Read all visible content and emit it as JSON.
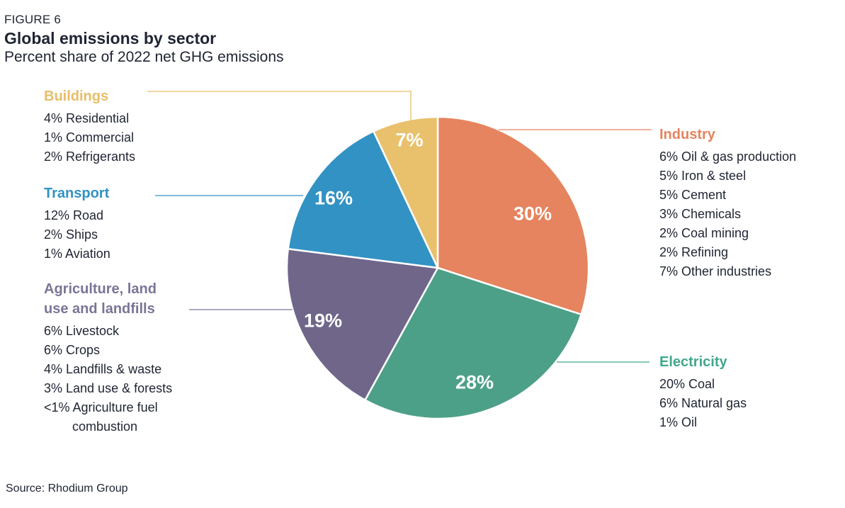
{
  "figure_label": "FIGURE 6",
  "source": "Source: Rhodium Group",
  "chart_data": {
    "type": "pie",
    "title": "Global emissions by sector",
    "subtitle": "Percent share of 2022 net GHG emissions",
    "start_angle_deg": 0,
    "direction": "clockwise",
    "units": "percent of 2022 net GHG emissions",
    "legend_position": "labels-on-both-sides-with-leader-lines",
    "slices": [
      {
        "id": "industry",
        "label": "Industry",
        "value": 30,
        "display": "30%",
        "color": "#E5845E",
        "label_color": "#E5845E",
        "breakdown": [
          "6% Oil & gas production",
          "5% Iron & steel",
          "5% Cement",
          "3% Chemicals",
          "2% Coal mining",
          "2% Refining",
          "7% Other industries"
        ]
      },
      {
        "id": "electricity",
        "label": "Electricity",
        "value": 28,
        "display": "28%",
        "color": "#4DA088",
        "label_color": "#41A78C",
        "breakdown": [
          "20% Coal",
          "6% Natural gas",
          "1% Oil"
        ]
      },
      {
        "id": "agriculture",
        "label": "Agriculture, land use and landfills",
        "value": 19,
        "display": "19%",
        "color": "#6F668A",
        "label_color": "#7B7497",
        "breakdown": [
          "6% Livestock",
          "6% Crops",
          "4% Landfills & waste",
          "3% Land use & forests",
          "<1% Agriculture fuel combustion"
        ]
      },
      {
        "id": "transport",
        "label": "Transport",
        "value": 16,
        "display": "16%",
        "color": "#3292C3",
        "label_color": "#3292C3",
        "breakdown": [
          "12% Road",
          "2% Ships",
          "1% Aviation"
        ]
      },
      {
        "id": "buildings",
        "label": "Buildings",
        "value": 7,
        "display": "7%",
        "color": "#E9C16D",
        "label_color": "#E8BD68",
        "breakdown": [
          "4% Residential",
          "1% Commercial",
          "2% Refrigerants"
        ]
      }
    ]
  }
}
